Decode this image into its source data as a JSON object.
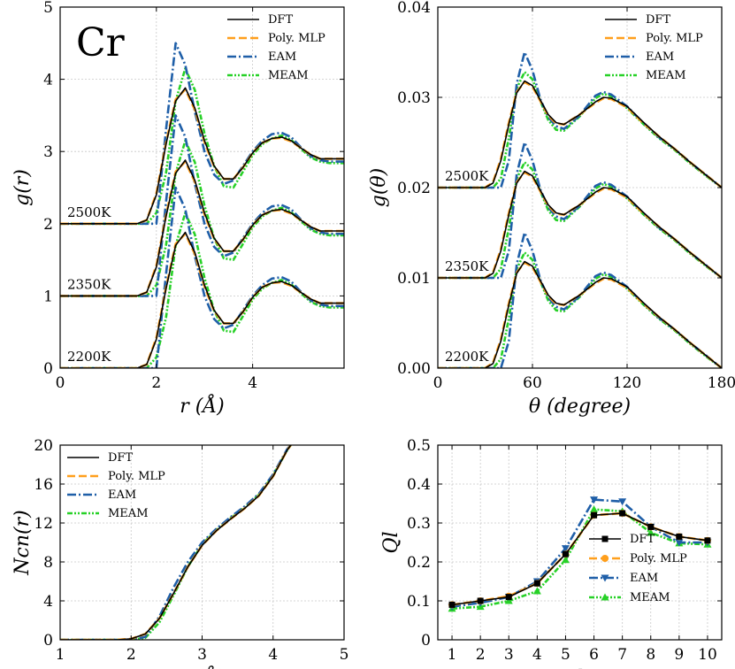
{
  "figure": {
    "element_label": "Cr"
  },
  "colors": {
    "DFT": "#000000",
    "Poly. MLP": "#ff9f1c",
    "EAM": "#1f5fa8",
    "MEAM": "#27d127"
  },
  "legend": [
    "DFT",
    "Poly. MLP",
    "EAM",
    "MEAM"
  ],
  "chart_data": [
    {
      "id": "gr",
      "type": "line",
      "xlabel": "r (Å)",
      "ylabel": "g(r)",
      "xlim": [
        0,
        5.9
      ],
      "ylim": [
        0,
        5
      ],
      "xticks": [
        0,
        2,
        4
      ],
      "yticks": [
        0,
        1,
        2,
        3,
        4,
        5
      ],
      "legend_position": "top-right",
      "temperature_labels": [
        "2500K",
        "2350K",
        "2200K"
      ],
      "offsets": [
        2,
        1,
        0
      ],
      "x": [
        0,
        1.6,
        1.8,
        2.0,
        2.2,
        2.4,
        2.6,
        2.8,
        3.0,
        3.2,
        3.4,
        3.6,
        3.8,
        4.0,
        4.2,
        4.4,
        4.6,
        4.8,
        5.0,
        5.2,
        5.4,
        5.6,
        5.9
      ],
      "series": [
        {
          "name": "DFT",
          "y": [
            0,
            0,
            0.05,
            0.4,
            1.1,
            1.7,
            1.88,
            1.6,
            1.15,
            0.8,
            0.62,
            0.62,
            0.78,
            0.98,
            1.12,
            1.18,
            1.2,
            1.15,
            1.05,
            0.96,
            0.9,
            0.9,
            0.9
          ]
        },
        {
          "name": "Poly. MLP",
          "y": [
            0,
            0,
            0.05,
            0.42,
            1.12,
            1.72,
            1.86,
            1.58,
            1.13,
            0.79,
            0.62,
            0.62,
            0.78,
            0.98,
            1.12,
            1.18,
            1.19,
            1.14,
            1.05,
            0.96,
            0.9,
            0.9,
            0.9
          ]
        },
        {
          "name": "EAM",
          "y": [
            0,
            0,
            0,
            0,
            1.3,
            2.5,
            2.2,
            1.55,
            1.0,
            0.68,
            0.55,
            0.6,
            0.8,
            1.0,
            1.15,
            1.24,
            1.26,
            1.2,
            1.06,
            0.94,
            0.88,
            0.86,
            0.86
          ]
        },
        {
          "name": "MEAM",
          "y": [
            0,
            0,
            0,
            0.15,
            0.7,
            1.7,
            2.15,
            1.85,
            1.25,
            0.8,
            0.52,
            0.5,
            0.72,
            0.95,
            1.1,
            1.18,
            1.22,
            1.16,
            1.04,
            0.92,
            0.86,
            0.84,
            0.84
          ]
        }
      ]
    },
    {
      "id": "gtheta",
      "type": "line",
      "xlabel": "θ (degree)",
      "ylabel": "g(θ)",
      "xlim": [
        0,
        180
      ],
      "ylim": [
        0,
        0.04
      ],
      "xticks": [
        0,
        60,
        120,
        180
      ],
      "yticks": [
        0.0,
        0.01,
        0.02,
        0.03,
        0.04
      ],
      "ytick_labels": [
        "0.00",
        "0.01",
        "0.02",
        "0.03",
        "0.04"
      ],
      "legend_position": "top-right",
      "temperature_labels": [
        "2500K",
        "2350K",
        "2200K"
      ],
      "offsets": [
        0.02,
        0.01,
        0
      ],
      "x": [
        0,
        30,
        35,
        40,
        45,
        50,
        55,
        60,
        65,
        70,
        75,
        80,
        90,
        100,
        105,
        110,
        120,
        130,
        140,
        150,
        160,
        170,
        180
      ],
      "series": [
        {
          "name": "DFT",
          "y": [
            0,
            0,
            0.0005,
            0.003,
            0.007,
            0.0105,
            0.0118,
            0.0113,
            0.0097,
            0.0081,
            0.0072,
            0.007,
            0.0081,
            0.0095,
            0.01,
            0.0099,
            0.009,
            0.0073,
            0.0057,
            0.0043,
            0.0028,
            0.0014,
            0
          ]
        },
        {
          "name": "Poly. MLP",
          "y": [
            0,
            0,
            0.0006,
            0.0032,
            0.0072,
            0.0106,
            0.0117,
            0.0112,
            0.0096,
            0.008,
            0.0071,
            0.007,
            0.0081,
            0.0094,
            0.0099,
            0.0098,
            0.0089,
            0.0072,
            0.0057,
            0.0043,
            0.0028,
            0.0014,
            0
          ]
        },
        {
          "name": "EAM",
          "y": [
            0,
            0,
            0,
            0,
            0.003,
            0.0115,
            0.015,
            0.013,
            0.0098,
            0.0078,
            0.0068,
            0.0065,
            0.008,
            0.0102,
            0.0106,
            0.0103,
            0.009,
            0.0072,
            0.0056,
            0.0043,
            0.0028,
            0.0014,
            0
          ]
        },
        {
          "name": "MEAM",
          "y": [
            0,
            0,
            0,
            0.001,
            0.0055,
            0.011,
            0.0128,
            0.012,
            0.0096,
            0.0075,
            0.0064,
            0.0063,
            0.0079,
            0.0099,
            0.0104,
            0.0101,
            0.0088,
            0.0071,
            0.0055,
            0.0042,
            0.0027,
            0.0013,
            0
          ]
        }
      ]
    },
    {
      "id": "ncn",
      "type": "line",
      "xlabel": "r (Å)",
      "ylabel": "Ncn(r)",
      "xlim": [
        1,
        5
      ],
      "ylim": [
        0,
        20
      ],
      "xticks": [
        1,
        2,
        3,
        4,
        5
      ],
      "yticks": [
        0,
        4,
        8,
        12,
        16,
        20
      ],
      "legend_position": "top-left",
      "x": [
        1,
        1.8,
        2.0,
        2.2,
        2.4,
        2.6,
        2.8,
        3.0,
        3.2,
        3.4,
        3.6,
        3.8,
        4.0,
        4.2,
        4.25
      ],
      "series": [
        {
          "name": "DFT",
          "y": [
            0,
            0,
            0.1,
            0.6,
            2.2,
            4.8,
            7.5,
            9.7,
            11.2,
            12.4,
            13.5,
            14.8,
            16.8,
            19.5,
            20
          ]
        },
        {
          "name": "Poly. MLP",
          "y": [
            0,
            0,
            0.1,
            0.6,
            2.2,
            4.8,
            7.5,
            9.7,
            11.2,
            12.4,
            13.5,
            14.8,
            16.8,
            19.5,
            20
          ]
        },
        {
          "name": "EAM",
          "y": [
            0,
            0,
            0,
            0.3,
            2.4,
            5.4,
            8.0,
            10.0,
            11.4,
            12.6,
            13.7,
            15.0,
            17.0,
            19.6,
            20
          ]
        },
        {
          "name": "MEAM",
          "y": [
            0,
            0,
            0,
            0.2,
            1.8,
            4.6,
            7.5,
            9.8,
            11.3,
            12.5,
            13.6,
            14.9,
            16.9,
            19.5,
            20
          ]
        }
      ]
    },
    {
      "id": "ql",
      "type": "line",
      "xlabel": "l",
      "ylabel": "Ql",
      "xlim": [
        0.5,
        10.5
      ],
      "ylim": [
        0,
        0.5
      ],
      "xticks": [
        1,
        2,
        3,
        4,
        5,
        6,
        7,
        8,
        9,
        10
      ],
      "yticks": [
        0.0,
        0.1,
        0.2,
        0.3,
        0.4,
        0.5
      ],
      "legend_position": "lower-right",
      "x": [
        1,
        2,
        3,
        4,
        5,
        6,
        7,
        8,
        9,
        10
      ],
      "series": [
        {
          "name": "DFT",
          "marker": "square",
          "y": [
            0.09,
            0.1,
            0.11,
            0.145,
            0.22,
            0.32,
            0.325,
            0.29,
            0.265,
            0.255
          ]
        },
        {
          "name": "Poly. MLP",
          "marker": "circle",
          "y": [
            0.09,
            0.1,
            0.112,
            0.145,
            0.22,
            0.32,
            0.325,
            0.29,
            0.265,
            0.255
          ]
        },
        {
          "name": "EAM",
          "marker": "triangle-down",
          "y": [
            0.085,
            0.095,
            0.11,
            0.15,
            0.235,
            0.36,
            0.355,
            0.29,
            0.25,
            0.25
          ]
        },
        {
          "name": "MEAM",
          "marker": "triangle-up",
          "y": [
            0.08,
            0.085,
            0.1,
            0.125,
            0.205,
            0.335,
            0.33,
            0.275,
            0.248,
            0.245
          ]
        }
      ]
    }
  ]
}
